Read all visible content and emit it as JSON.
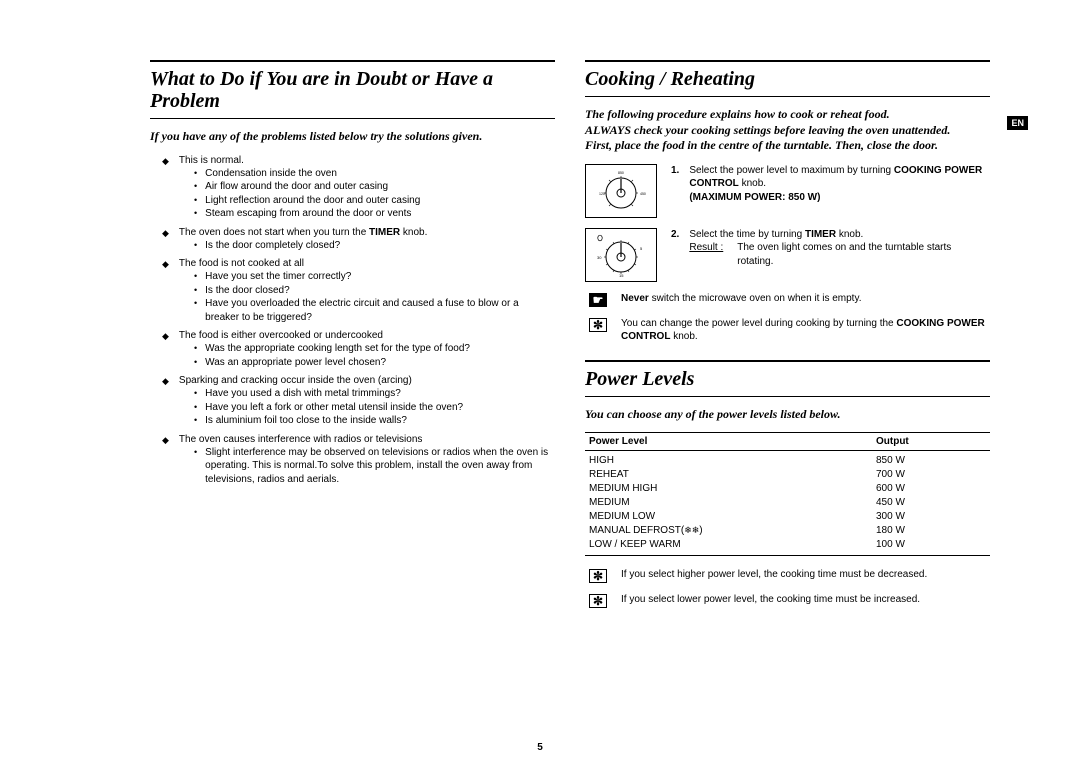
{
  "page_number": "5",
  "lang_badge": "EN",
  "left": {
    "title": "What to Do if You are in Doubt or Have a Problem",
    "intro": "If you have any of the problems listed below try the solutions given.",
    "groups": [
      {
        "header_pre": "This is normal.",
        "bullets": [
          "Condensation inside the oven",
          "Air flow around the door and outer casing",
          "Light reflection around the door and outer casing",
          "Steam escaping from around the door or vents"
        ]
      },
      {
        "header_pre": "The oven does not start when you turn the ",
        "header_bold": "TIMER",
        "header_post": " knob.",
        "bullets": [
          "Is the door completely closed?"
        ]
      },
      {
        "header_pre": "The food is not cooked at all",
        "bullets": [
          "Have you set the timer correctly?",
          "Is the door closed?",
          "Have you overloaded the electric circuit and caused a fuse to blow or a breaker to be triggered?"
        ]
      },
      {
        "header_pre": "The food is either overcooked or undercooked",
        "bullets": [
          "Was the appropriate cooking length set for the type of food?",
          "Was an appropriate power level chosen?"
        ]
      },
      {
        "header_pre": "Sparking and cracking occur inside the oven (arcing)",
        "bullets": [
          "Have you used a dish with metal trimmings?",
          "Have you left a fork or other metal utensil inside the oven?",
          "Is aluminium foil too close to the inside walls?"
        ]
      },
      {
        "header_pre": "The oven causes interference with radios or televisions",
        "bullets": [
          "Slight interference may be observed on televisions or radios when the oven is operating. This is normal.To solve this problem, install the oven away from televisions, radios and aerials."
        ]
      }
    ]
  },
  "right": {
    "cooking": {
      "title": "Cooking / Reheating",
      "intro1": "The following procedure explains how to cook or reheat food.",
      "intro2": "ALWAYS check your cooking settings before leaving the oven unattended.",
      "intro3": "First, place the food in the centre of the turntable. Then, close the door.",
      "step1_num": "1.",
      "step1_pre": "Select the power level to maximum by turning ",
      "step1_bold1": "COOKING POWER CONTROL",
      "step1_mid": " knob.",
      "step1_bold2": "(MAXIMUM POWER: 850 W)",
      "step2_num": "2.",
      "step2_pre": "Select the time by turning ",
      "step2_bold": "TIMER",
      "step2_post": " knob.",
      "step2_result_label": "Result :",
      "step2_result_text": "The oven light comes on and the turntable starts rotating.",
      "note1_bold": "Never",
      "note1_rest": " switch the microwave oven on when it is empty.",
      "note2_pre": "You can change the power level during cooking by turning the ",
      "note2_bold": "COOKING POWER CONTROL",
      "note2_post": " knob."
    },
    "power": {
      "title": "Power Levels",
      "intro": "You can choose any of the power levels listed below.",
      "col1": "Power Level",
      "col2": "Output",
      "rows": [
        {
          "level": "HIGH",
          "output": "850 W"
        },
        {
          "level": "REHEAT",
          "output": "700 W"
        },
        {
          "level": "MEDIUM HIGH",
          "output": "600 W"
        },
        {
          "level": "MEDIUM",
          "output": "450 W"
        },
        {
          "level": "MEDIUM LOW",
          "output": "300 W"
        },
        {
          "level": "MANUAL DEFROST( )",
          "output": "180 W"
        },
        {
          "level": "LOW / KEEP WARM",
          "output": "100 W"
        }
      ],
      "note3": "If you select higher power level, the cooking time must be decreased.",
      "note4": "If you select lower power level, the cooking time must be increased."
    }
  }
}
